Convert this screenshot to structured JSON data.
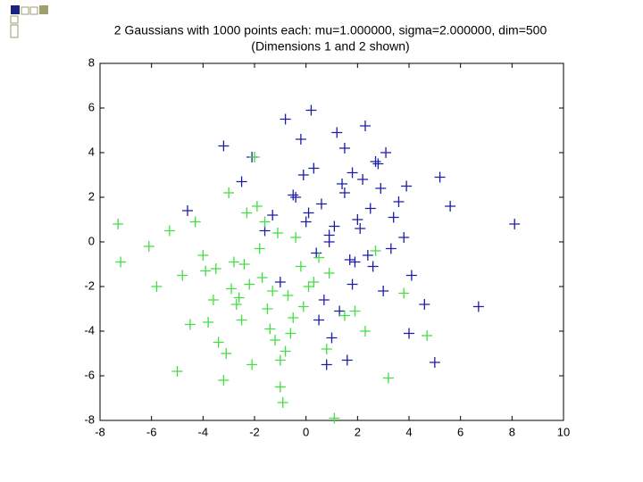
{
  "chart_data": {
    "type": "scatter",
    "title": "2 Gaussians with 1000 points each: mu=1.000000, sigma=2.000000, dim=500",
    "subtitle": "(Dimensions 1 and 2 shown)",
    "xlim": [
      -8,
      10
    ],
    "xticks": [
      -8,
      -6,
      -4,
      -2,
      0,
      2,
      4,
      6,
      8,
      10
    ],
    "ylim": [
      -8,
      8
    ],
    "yticks": [
      -8,
      -6,
      -4,
      -2,
      0,
      2,
      4,
      6,
      8
    ],
    "grid": false,
    "series": [
      {
        "color": "#1c1ca8",
        "x": [
          0.2,
          1.5,
          2.8,
          -0.5,
          3.6,
          1.1,
          0.4,
          2.2,
          -1.3,
          4.1,
          1.8,
          0.9,
          3.0,
          -0.2,
          2.5,
          1.3,
          5.2,
          0.0,
          1.7,
          -2.1,
          2.9,
          0.6,
          3.8,
          1.0,
          -0.8,
          2.0,
          4.6,
          1.4,
          0.3,
          3.3,
          -1.6,
          2.6,
          1.2,
          5.6,
          0.7,
          -0.4,
          2.3,
          3.9,
          1.6,
          0.1,
          8.1,
          6.7,
          -4.6,
          -3.2,
          4.0,
          0.9,
          1.9,
          2.7,
          -1.0,
          3.4,
          1.5,
          0.5,
          5.0,
          2.1,
          -0.1,
          1.8,
          3.1,
          0.8,
          -2.5,
          2.4
        ],
        "values": [
          5.9,
          4.2,
          3.5,
          2.1,
          1.8,
          0.7,
          -0.5,
          2.8,
          1.2,
          -1.5,
          3.1,
          0.3,
          -2.2,
          4.6,
          1.5,
          -3.1,
          2.9,
          0.9,
          -0.8,
          3.8,
          2.4,
          1.7,
          0.2,
          -4.3,
          5.5,
          1.0,
          -2.8,
          2.6,
          3.3,
          -0.3,
          0.5,
          -1.1,
          4.9,
          1.6,
          -2.6,
          2.0,
          5.2,
          2.5,
          -5.3,
          1.3,
          0.8,
          -2.9,
          1.4,
          4.3,
          -4.1,
          0.0,
          -0.9,
          3.6,
          -1.8,
          1.1,
          2.2,
          -3.5,
          -5.4,
          0.6,
          3.0,
          -1.9,
          4.0,
          -5.5,
          2.7,
          -0.6
        ]
      },
      {
        "color": "#44dd44",
        "x": [
          -7.3,
          -7.2,
          -5.8,
          -5.0,
          -4.3,
          -3.2,
          -2.1,
          -1.0,
          -0.9,
          1.1,
          -3.5,
          -2.6,
          -1.8,
          -0.5,
          0.3,
          -1.2,
          -2.9,
          -4.0,
          -1.5,
          0.8,
          -2.3,
          -0.2,
          -3.8,
          -1.1,
          -2.7,
          0.5,
          -1.7,
          -3.0,
          -0.7,
          1.5,
          2.3,
          3.2,
          -4.8,
          -2.0,
          -0.4,
          -1.4,
          -3.4,
          0.1,
          -2.4,
          4.7,
          -6.1,
          -5.3,
          -3.6,
          -1.9,
          -0.8,
          -2.8,
          1.9,
          2.7,
          -4.5,
          -1.3,
          0.9,
          -3.1,
          -0.1,
          -2.2,
          -1.6,
          3.8,
          -0.6,
          -3.9,
          -2.5,
          -1.0
        ],
        "values": [
          0.8,
          -0.9,
          -2.0,
          -5.8,
          0.9,
          -6.2,
          -5.5,
          -6.5,
          -7.2,
          -7.9,
          -1.2,
          -2.5,
          -0.3,
          -3.4,
          -1.8,
          -4.4,
          -2.1,
          -0.6,
          -3.0,
          -4.8,
          1.3,
          -1.1,
          -3.6,
          0.4,
          -2.8,
          -0.7,
          -1.6,
          2.2,
          -2.4,
          -3.3,
          -4.0,
          -6.1,
          -1.5,
          3.8,
          0.2,
          -3.9,
          -4.5,
          -2.0,
          -1.0,
          -4.2,
          -0.2,
          0.5,
          -2.6,
          1.6,
          -4.9,
          -0.9,
          -3.1,
          -0.4,
          -3.7,
          -2.2,
          -1.4,
          -5.0,
          -2.9,
          -1.9,
          0.9,
          -2.3,
          -4.1,
          -1.3,
          -3.5,
          -5.3
        ]
      }
    ]
  }
}
